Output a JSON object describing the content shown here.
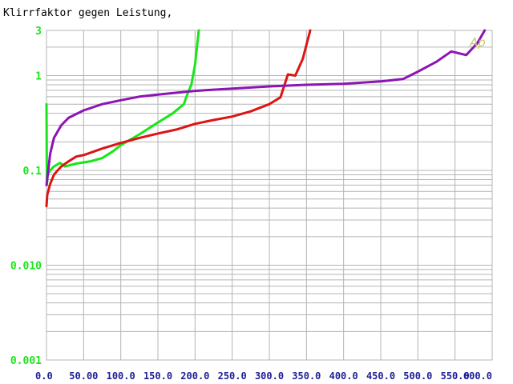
{
  "colors": {
    "background": "#ffffff",
    "grid": "#b4b4b4",
    "title": "#000000",
    "ytick": "#19e619",
    "xtick": "#1e1e96",
    "logo": "#c8c86e"
  },
  "logo": {
    "text": "Ap"
  },
  "chart_data": {
    "type": "line",
    "title": "Klirrfaktor gegen Leistung,",
    "xlabel": "",
    "ylabel": "",
    "xlim": [
      0,
      600
    ],
    "ylim": [
      0.001,
      3
    ],
    "yscale": "log",
    "grid": true,
    "x_ticks": [
      0,
      50,
      100,
      150,
      200,
      250,
      300,
      350,
      400,
      450,
      500,
      550,
      600
    ],
    "x_tick_labels": [
      "0.0",
      "50.00",
      "100.0",
      "150.0",
      "200.0",
      "250.0",
      "300.0",
      "350.0",
      "400.0",
      "450.0",
      "500.0",
      "550.0",
      "600.0"
    ],
    "y_ticks": [
      3,
      1,
      0.1,
      0.01,
      0.001
    ],
    "y_tick_labels": [
      "3",
      "1",
      "0.1",
      "0.010",
      "0.001"
    ],
    "series": [
      {
        "color": "#19e619",
        "points": [
          [
            0,
            0.5
          ],
          [
            0.5,
            0.07
          ],
          [
            1.5,
            0.09
          ],
          [
            5,
            0.1
          ],
          [
            10,
            0.11
          ],
          [
            18,
            0.12
          ],
          [
            25,
            0.11
          ],
          [
            40,
            0.118
          ],
          [
            60,
            0.125
          ],
          [
            75,
            0.135
          ],
          [
            90,
            0.16
          ],
          [
            100,
            0.185
          ],
          [
            125,
            0.24
          ],
          [
            150,
            0.32
          ],
          [
            170,
            0.4
          ],
          [
            185,
            0.5
          ],
          [
            190,
            0.65
          ],
          [
            195,
            0.8
          ],
          [
            200,
            1.3
          ],
          [
            205,
            3.0
          ]
        ]
      },
      {
        "color": "#dc1414",
        "points": [
          [
            0,
            0.042
          ],
          [
            1,
            0.055
          ],
          [
            5,
            0.072
          ],
          [
            10,
            0.09
          ],
          [
            15,
            0.1
          ],
          [
            20,
            0.11
          ],
          [
            30,
            0.125
          ],
          [
            40,
            0.14
          ],
          [
            50,
            0.145
          ],
          [
            75,
            0.17
          ],
          [
            100,
            0.195
          ],
          [
            125,
            0.22
          ],
          [
            150,
            0.245
          ],
          [
            175,
            0.27
          ],
          [
            200,
            0.31
          ],
          [
            225,
            0.34
          ],
          [
            250,
            0.37
          ],
          [
            275,
            0.42
          ],
          [
            300,
            0.5
          ],
          [
            315,
            0.59
          ],
          [
            325,
            1.03
          ],
          [
            335,
            1.0
          ],
          [
            345,
            1.5
          ],
          [
            355,
            3.0
          ]
        ]
      },
      {
        "color": "#8c14b4",
        "points": [
          [
            0,
            0.07
          ],
          [
            5,
            0.15
          ],
          [
            10,
            0.22
          ],
          [
            20,
            0.3
          ],
          [
            30,
            0.36
          ],
          [
            50,
            0.43
          ],
          [
            75,
            0.5
          ],
          [
            100,
            0.55
          ],
          [
            125,
            0.6
          ],
          [
            150,
            0.63
          ],
          [
            175,
            0.66
          ],
          [
            200,
            0.69
          ],
          [
            250,
            0.73
          ],
          [
            300,
            0.77
          ],
          [
            350,
            0.8
          ],
          [
            400,
            0.82
          ],
          [
            450,
            0.87
          ],
          [
            480,
            0.92
          ],
          [
            500,
            1.1
          ],
          [
            525,
            1.4
          ],
          [
            545,
            1.8
          ],
          [
            565,
            1.65
          ],
          [
            580,
            2.2
          ],
          [
            590,
            3.0
          ]
        ]
      }
    ]
  }
}
